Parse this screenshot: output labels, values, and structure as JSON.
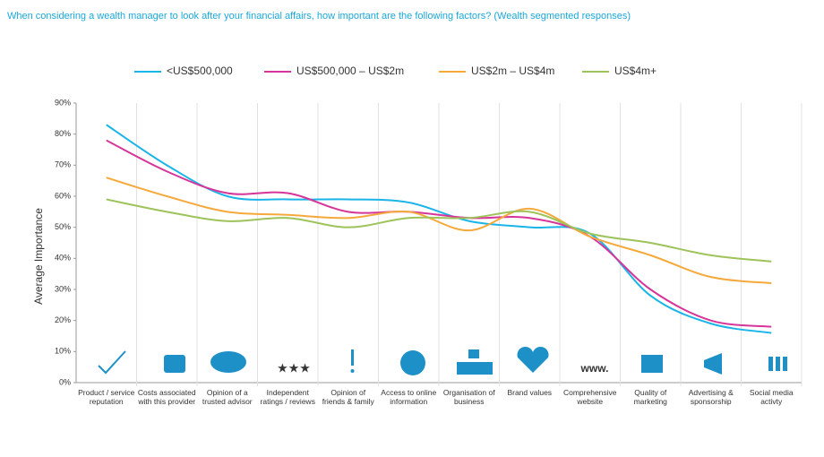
{
  "chart_data": {
    "type": "line",
    "title": "When considering a wealth manager to look after your financial affairs, how important are the following factors? (Wealth segmented responses)",
    "y_label": "Average Importance",
    "categories": [
      "Product / service reputation",
      "Costs associated with this provider",
      "Opinion of a trusted advisor",
      "Independent ratings / reviews",
      "Opinion of friends & family",
      "Access to online information",
      "Organisation of business",
      "Brand values",
      "Comprehensive website",
      "Quality of marketing",
      "Advertising & sponsorship",
      "Social media activty"
    ],
    "series": [
      {
        "name": "<US$500,000",
        "color": "#1ab4e8",
        "values": [
          83,
          70,
          60,
          59,
          59,
          58,
          52,
          50,
          48,
          28,
          19,
          16
        ]
      },
      {
        "name": "US$500,000 – US$2m",
        "color": "#d6359a",
        "values": [
          78,
          68,
          61,
          61,
          55,
          55,
          53,
          53,
          47,
          30,
          20,
          18
        ]
      },
      {
        "name": "US$2m – US$4m",
        "color": "#f5a93c",
        "values": [
          66,
          60,
          55,
          54,
          53,
          55,
          49,
          56,
          47,
          41,
          34,
          32
        ]
      },
      {
        "name": "US$4m+",
        "color": "#9dc35a",
        "values": [
          59,
          55,
          52,
          53,
          50,
          53,
          53,
          55,
          48,
          45,
          41,
          39
        ]
      }
    ],
    "ylim": [
      0,
      90
    ],
    "yticks": [
      {
        "value": 0,
        "label": "0%"
      },
      {
        "value": 10,
        "label": "10%"
      },
      {
        "value": 20,
        "label": "20%"
      },
      {
        "value": 30,
        "label": "30%"
      },
      {
        "value": 40,
        "label": "40%"
      },
      {
        "value": 50,
        "label": "50%"
      },
      {
        "value": 60,
        "label": "60%"
      },
      {
        "value": 70,
        "label": "70%"
      },
      {
        "value": 80,
        "label": "80%"
      },
      {
        "value": 90,
        "label": "90%"
      }
    ],
    "legend": "top"
  }
}
